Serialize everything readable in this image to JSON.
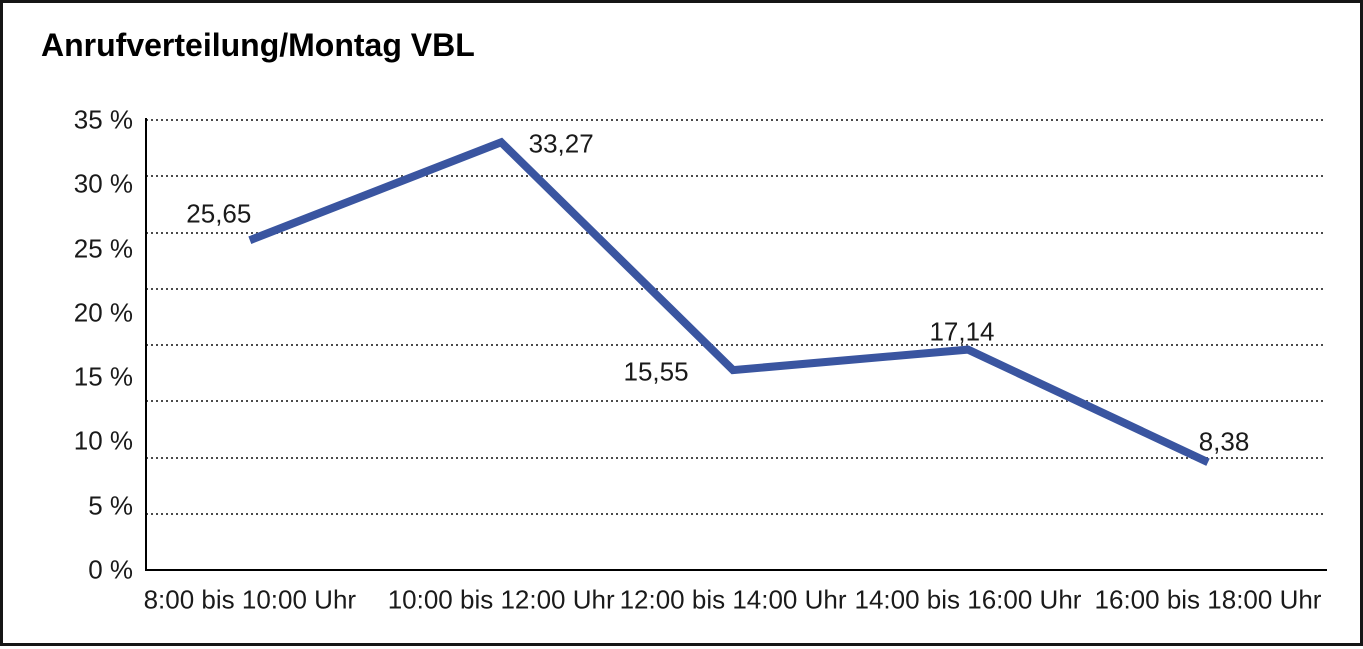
{
  "chart_data": {
    "type": "line",
    "title": "Anrufverteilung/Montag VBL",
    "categories": [
      "8:00 bis 10:00 Uhr",
      "10:00 bis 12:00 Uhr",
      "12:00 bis 14:00 Uhr",
      "14:00 bis 16:00 Uhr",
      "16:00 bis 18:00 Uhr"
    ],
    "values": [
      25.65,
      33.27,
      15.55,
      17.14,
      8.38
    ],
    "point_labels": [
      "25,65",
      "33,27",
      "15,55",
      "17,14",
      "8,38"
    ],
    "y_tick_labels": [
      "35 %",
      "30 %",
      "25 %",
      "20 %",
      "15 %",
      "10 %",
      "5 %",
      "0 %"
    ],
    "ylim": [
      0,
      35
    ],
    "xlabel": "",
    "ylabel": "",
    "legend": "none",
    "grid": "horizontal-dotted",
    "line_color": "#3A55A0",
    "axis_color": "#000000",
    "text_color": "#1a1a1a",
    "background_color": "#ffffff"
  }
}
